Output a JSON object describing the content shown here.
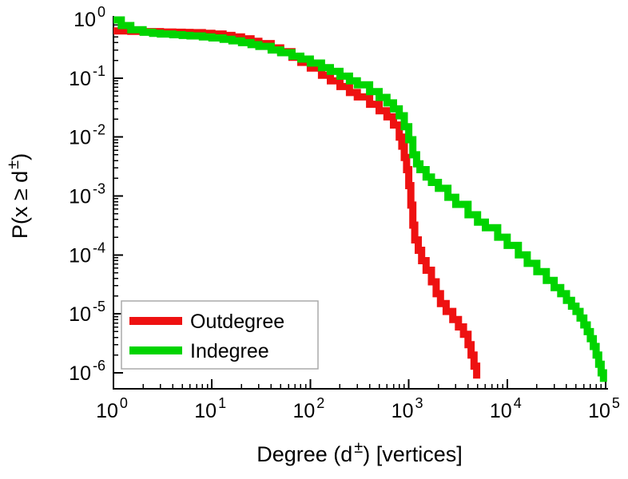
{
  "figure": {
    "background": "#ffffff",
    "axis_color": "#000000",
    "tick_base": "10"
  },
  "chart_data": {
    "type": "line",
    "subtype": "ccdf-step-loglog",
    "title": "",
    "xlabel": "Degree (d±) [vertices]",
    "ylabel": "P(x ≥ d±)",
    "xlabel_parts": {
      "prefix": "Degree (d",
      "sup": "±",
      "suffix": ") [vertices]"
    },
    "ylabel_parts": {
      "prefix": "P(x ≥ d",
      "sup": "±",
      "suffix": ")"
    },
    "xscale": "log",
    "yscale": "log",
    "xlim": [
      1,
      100000
    ],
    "ylim": [
      1e-06,
      1
    ],
    "x_tick_exponents": [
      0,
      1,
      2,
      3,
      4,
      5
    ],
    "y_tick_exponents": [
      0,
      -1,
      -2,
      -3,
      -4,
      -5,
      -6
    ],
    "grid": false,
    "legend": {
      "position": "bottom-left",
      "border_color": "#aaaaaa",
      "background": "#ffffff",
      "entries": [
        {
          "label": "Outdegree",
          "color": "#ee1111"
        },
        {
          "label": "Indegree",
          "color": "#00d400"
        }
      ]
    },
    "series": [
      {
        "name": "Outdegree",
        "color": "#ee1111",
        "points": [
          [
            1,
            0.63
          ],
          [
            1.5,
            0.62
          ],
          [
            2,
            0.615
          ],
          [
            3,
            0.605
          ],
          [
            4,
            0.6
          ],
          [
            5,
            0.595
          ],
          [
            6,
            0.59
          ],
          [
            8,
            0.575
          ],
          [
            10,
            0.56
          ],
          [
            13,
            0.53
          ],
          [
            16,
            0.5
          ],
          [
            20,
            0.465
          ],
          [
            25,
            0.42
          ],
          [
            30,
            0.385
          ],
          [
            40,
            0.325
          ],
          [
            50,
            0.28
          ],
          [
            65,
            0.225
          ],
          [
            80,
            0.185
          ],
          [
            100,
            0.148
          ],
          [
            130,
            0.112
          ],
          [
            160,
            0.09
          ],
          [
            200,
            0.072
          ],
          [
            250,
            0.057
          ],
          [
            300,
            0.048
          ],
          [
            400,
            0.036
          ],
          [
            500,
            0.028
          ],
          [
            600,
            0.022
          ],
          [
            700,
            0.016
          ],
          [
            800,
            0.01
          ],
          [
            850,
            0.007
          ],
          [
            900,
            0.0045
          ],
          [
            950,
            0.0028
          ],
          [
            1000,
            0.0015
          ],
          [
            1050,
            0.0007
          ],
          [
            1100,
            0.00032
          ],
          [
            1150,
            0.00018
          ],
          [
            1250,
            0.00012
          ],
          [
            1350,
            8e-05
          ],
          [
            1500,
            5.5e-05
          ],
          [
            1700,
            3.5e-05
          ],
          [
            1900,
            2.2e-05
          ],
          [
            2100,
            1.5e-05
          ],
          [
            2400,
            1.1e-05
          ],
          [
            2800,
            8e-06
          ],
          [
            3200,
            6e-06
          ],
          [
            3600,
            4.5e-06
          ],
          [
            4000,
            3e-06
          ],
          [
            4300,
            2e-06
          ],
          [
            4600,
            1.3e-06
          ],
          [
            4900,
            8e-07
          ]
        ]
      },
      {
        "name": "Indegree",
        "color": "#00d400",
        "points": [
          [
            1,
            0.97
          ],
          [
            1.2,
            0.78
          ],
          [
            1.5,
            0.66
          ],
          [
            2,
            0.6
          ],
          [
            2.5,
            0.575
          ],
          [
            3,
            0.56
          ],
          [
            4,
            0.545
          ],
          [
            5,
            0.53
          ],
          [
            6,
            0.52
          ],
          [
            8,
            0.5
          ],
          [
            10,
            0.48
          ],
          [
            13,
            0.455
          ],
          [
            16,
            0.43
          ],
          [
            20,
            0.4
          ],
          [
            25,
            0.37
          ],
          [
            30,
            0.345
          ],
          [
            40,
            0.3
          ],
          [
            50,
            0.27
          ],
          [
            65,
            0.235
          ],
          [
            80,
            0.21
          ],
          [
            100,
            0.18
          ],
          [
            130,
            0.15
          ],
          [
            160,
            0.13
          ],
          [
            200,
            0.108
          ],
          [
            250,
            0.09
          ],
          [
            300,
            0.077
          ],
          [
            400,
            0.059
          ],
          [
            500,
            0.047
          ],
          [
            600,
            0.038
          ],
          [
            700,
            0.03
          ],
          [
            800,
            0.023
          ],
          [
            900,
            0.015
          ],
          [
            1000,
            0.009
          ],
          [
            1100,
            0.005
          ],
          [
            1200,
            0.0035
          ],
          [
            1300,
            0.0028
          ],
          [
            1500,
            0.0021
          ],
          [
            1700,
            0.0017
          ],
          [
            2000,
            0.00135
          ],
          [
            2500,
            0.00095
          ],
          [
            3000,
            0.00072
          ],
          [
            4000,
            0.00048
          ],
          [
            5000,
            0.00036
          ],
          [
            6000,
            0.00029
          ],
          [
            8000,
            0.0002
          ],
          [
            10000,
            0.000145
          ],
          [
            13000,
            0.0001
          ],
          [
            16000,
            7.2e-05
          ],
          [
            20000,
            5.2e-05
          ],
          [
            25000,
            3.7e-05
          ],
          [
            30000,
            2.8e-05
          ],
          [
            35000,
            2.2e-05
          ],
          [
            40000,
            1.7e-05
          ],
          [
            45000,
            1.35e-05
          ],
          [
            50000,
            1.1e-05
          ],
          [
            55000,
            8.5e-06
          ],
          [
            60000,
            6.5e-06
          ],
          [
            65000,
            5e-06
          ],
          [
            70000,
            3.8e-06
          ],
          [
            75000,
            2.8e-06
          ],
          [
            80000,
            2e-06
          ],
          [
            85000,
            1.4e-06
          ],
          [
            90000,
            1e-06
          ],
          [
            95000,
            7e-07
          ]
        ]
      }
    ]
  }
}
